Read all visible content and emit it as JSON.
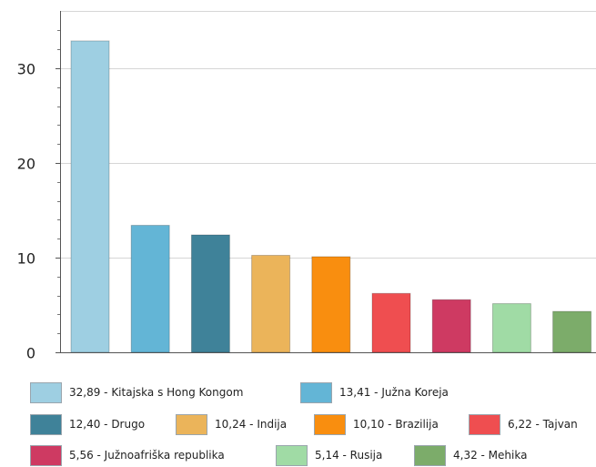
{
  "chart_data": {
    "type": "bar",
    "categories": [
      "Kitajska s Hong Kongom",
      "Južna Koreja",
      "Drugo",
      "Indija",
      "Brazilija",
      "Tajvan",
      "Južnoafriška republika",
      "Rusija",
      "Mehika"
    ],
    "values": [
      32.89,
      13.41,
      12.4,
      10.24,
      10.1,
      6.22,
      5.56,
      5.14,
      4.32
    ],
    "colors": [
      "#9ecfe2",
      "#63b5d6",
      "#3f8299",
      "#ebb45a",
      "#f98e0f",
      "#ef4e50",
      "#ce3a62",
      "#a0dba5",
      "#7cac6a"
    ],
    "ylim": [
      0,
      35
    ],
    "yticks": [
      "0",
      "10",
      "20",
      "30"
    ],
    "grid": true,
    "legend_position": "bottom",
    "legend": [
      "32,89 - Kitajska s Hong Kongom",
      "13,41 - Južna Koreja",
      "12,40 - Drugo",
      "10,24 - Indija",
      "10,10 - Brazilija",
      "6,22 - Tajvan",
      "5,56 - Južnoafriška republika",
      "5,14 - Rusija",
      "4,32 - Mehika"
    ]
  }
}
